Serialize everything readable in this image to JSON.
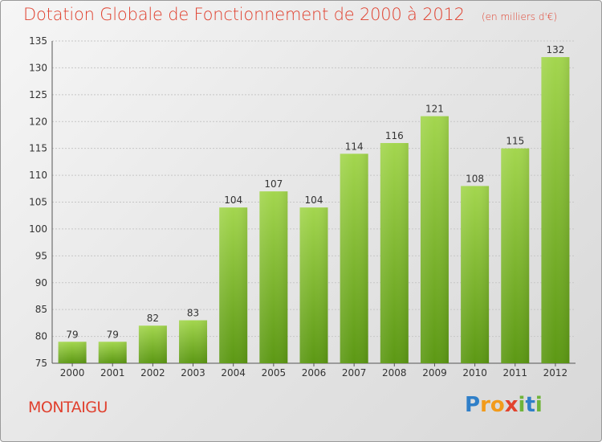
{
  "title": "Dotation Globale de Fonctionnement de 2000 à 2012",
  "unit_note": "(en milliers d'€)",
  "commune": "MONTAIGU",
  "logo_text": "Proxiti",
  "colors": {
    "title": "#e0402e",
    "bar_light": "#9fd24a",
    "bar_dark": "#5e9a16",
    "grid": "#c4c4c4"
  },
  "chart_data": {
    "type": "bar",
    "categories": [
      "2000",
      "2001",
      "2002",
      "2003",
      "2004",
      "2005",
      "2006",
      "2007",
      "2008",
      "2009",
      "2010",
      "2011",
      "2012"
    ],
    "values": [
      79,
      79,
      82,
      83,
      104,
      107,
      104,
      114,
      116,
      121,
      108,
      115,
      132
    ],
    "ylim": [
      75,
      135
    ],
    "yticks": [
      75,
      80,
      85,
      90,
      95,
      100,
      105,
      110,
      115,
      120,
      125,
      130,
      135
    ],
    "grid": true,
    "data_labels": true
  }
}
